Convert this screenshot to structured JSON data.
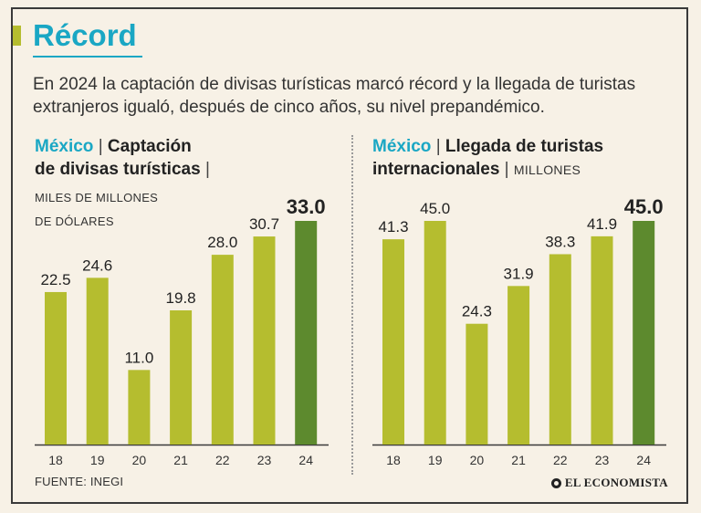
{
  "title": "Récord",
  "subtitle": "En 2024 la captación de divisas turísticas marcó récord y la llegada de turistas extranjeros igualó, después de cinco años, su nivel prepandémico.",
  "source": "FUENTE: INEGI",
  "brand": "EL ECONOMISTA",
  "colors": {
    "accent": "#1aa7c4",
    "bar": "#b5bd2f",
    "bar_highlight": "#5d8a2e"
  },
  "left": {
    "country": "México",
    "sep": "|",
    "name_line1": "Captación",
    "name_line2": "de divisas turísticas",
    "sep2": "|",
    "unit_line1": "MILES DE MILLONES",
    "unit_line2": "DE DÓLARES"
  },
  "right": {
    "country": "México",
    "sep": "|",
    "name_line1": "Llegada de turistas",
    "name_line2": "internacionales",
    "sep2": "|",
    "unit": "MILLONES"
  },
  "chart_data": [
    {
      "type": "bar",
      "title": "Captación de divisas turísticas",
      "ylabel": "MILES DE MILLONES DE DÓLARES",
      "categories": [
        "18",
        "19",
        "20",
        "21",
        "22",
        "23",
        "24"
      ],
      "values": [
        22.5,
        24.6,
        11.0,
        19.8,
        28.0,
        30.7,
        33.0
      ],
      "labels": [
        "22.5",
        "24.6",
        "11.0",
        "19.8",
        "28.0",
        "30.7",
        "33.0"
      ],
      "highlight_index": 6
    },
    {
      "type": "bar",
      "title": "Llegada de turistas internacionales",
      "ylabel": "MILLONES",
      "categories": [
        "18",
        "19",
        "20",
        "21",
        "22",
        "23",
        "24"
      ],
      "values": [
        41.3,
        45.0,
        24.3,
        31.9,
        38.3,
        41.9,
        45.0
      ],
      "labels": [
        "41.3",
        "45.0",
        "24.3",
        "31.9",
        "38.3",
        "41.9",
        "45.0"
      ],
      "highlight_index": 6
    }
  ]
}
